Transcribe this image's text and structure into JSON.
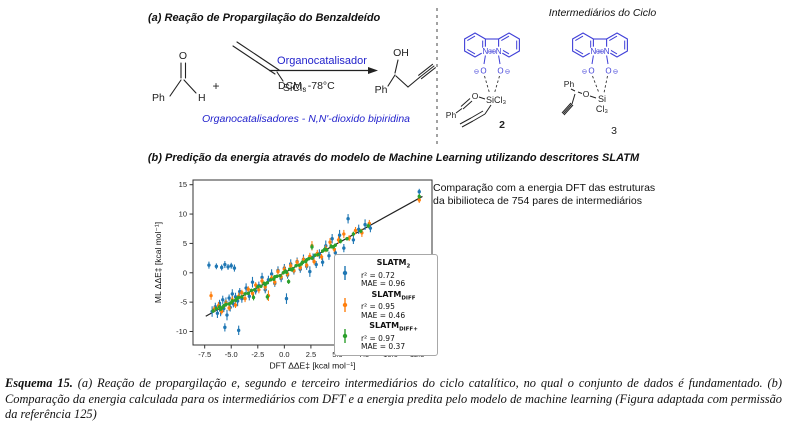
{
  "colors": {
    "chem_blue": "#2222cc",
    "struct_blue": "#4040d8",
    "identity_line": "#222222"
  },
  "panel_a": {
    "title": "(a) Reação de Propargilação do Benzaldeído",
    "benzaldehyde": {
      "ph": "Ph",
      "o": "O",
      "h": "H"
    },
    "plus": "+",
    "allene": {
      "sicl3": "SiCl₃"
    },
    "arrow": {
      "catalyst": "Organocatalisador",
      "conditions": "DCM, -78°C"
    },
    "product": {
      "oh": "OH",
      "ph": "Ph"
    },
    "note": "Organocatalisadores - N,N'-dioxido bipiridina"
  },
  "intermediates": {
    "title": "Intermediários do Ciclo",
    "n": "N",
    "oplus": "⊕",
    "ominus": "⊖",
    "o": "O",
    "struct2": {
      "o": "O",
      "sicl3": "SiCl₃",
      "ph": "Ph",
      "label": "2"
    },
    "struct3": {
      "ph": "Ph",
      "o": "O",
      "si": "Si",
      "cl3": "Cl₃",
      "label": "3"
    }
  },
  "panel_b": {
    "title": "(b) Predição da energia através do modelo de Machine Learning utilizando descritores SLATM",
    "note": "Comparação com a energia DFT das estruturas\nda bibilioteca de 754 pares de intermediários"
  },
  "caption": {
    "prefix": "Esquema 15.",
    "body": " (a) Reação de propargilação e, segundo e terceiro intermediários do ciclo catalítico, no qual o conjunto de dados é fundamentado. (b) Comparação da energia calculada para os intermediários com DFT e a energia predita pelo modelo de machine learning (Figura adaptada com permissão da referência 125)"
  },
  "chart_data": {
    "type": "scatter",
    "xlabel": "DFT ΔΔE‡ [kcal mol⁻¹]",
    "ylabel": "ML ΔΔE‡ [kcal mol⁻¹]",
    "xlim": [
      -8.6,
      13.9
    ],
    "ylim": [
      -12.3,
      15.8
    ],
    "x_ticks": [
      -7.5,
      -5,
      -2.5,
      0,
      2.5,
      5,
      7.5,
      10,
      12.5
    ],
    "x_tick_labels": [
      "-7.5",
      "-5.0",
      "-2.5",
      "0.0",
      "2.5",
      "5.0",
      "7.5",
      "10.0",
      "12.5"
    ],
    "y_ticks": [
      -10,
      -5,
      0,
      5,
      10,
      15
    ],
    "y_tick_labels": [
      "-10",
      "-5",
      "0",
      "5",
      "10",
      "15"
    ],
    "grid": false,
    "legend_position": "lower right",
    "identity_line": {
      "x1": -7.4,
      "y1": -7.4,
      "x2": 13.0,
      "y2": 13.0
    },
    "series": [
      {
        "name_main": "SLATM",
        "name_sub": "2",
        "color": "#1f77b4",
        "r2_label": "r² = 0.72",
        "mae_label": "MAE = 0.96",
        "points": [
          [
            -6.8,
            -6.6,
            0.9
          ],
          [
            -6.5,
            -5.8,
            0.7
          ],
          [
            -6.3,
            -6.9,
            0.8
          ],
          [
            -6.1,
            -5.2,
            0.6
          ],
          [
            -6.0,
            -6.4,
            1.0
          ],
          [
            -5.8,
            -4.6,
            0.7
          ],
          [
            -5.7,
            -6.1,
            0.6
          ],
          [
            -5.5,
            -5.0,
            0.8
          ],
          [
            -5.4,
            -7.2,
            0.9
          ],
          [
            -5.2,
            -4.3,
            0.6
          ],
          [
            -5.1,
            -5.9,
            0.7
          ],
          [
            -4.9,
            -3.6,
            0.8
          ],
          [
            -4.8,
            -5.3,
            0.6
          ],
          [
            -4.6,
            -4.1,
            0.7
          ],
          [
            -4.4,
            -4.8,
            0.9
          ],
          [
            -4.2,
            -3.2,
            0.6
          ],
          [
            -4.0,
            -4.4,
            0.7
          ],
          [
            -7.1,
            1.3,
            0.6
          ],
          [
            -6.4,
            1.1,
            0.5
          ],
          [
            -5.9,
            0.9,
            0.5
          ],
          [
            -5.6,
            1.4,
            0.6
          ],
          [
            -5.3,
            1.0,
            0.5
          ],
          [
            -5.0,
            1.2,
            0.5
          ],
          [
            -4.7,
            0.8,
            0.6
          ],
          [
            -5.6,
            -9.3,
            0.7
          ],
          [
            -4.3,
            -9.8,
            0.8
          ],
          [
            -3.6,
            -2.6,
            0.8
          ],
          [
            -3.3,
            -4.0,
            0.7
          ],
          [
            -3.0,
            -1.6,
            0.9
          ],
          [
            -2.7,
            -3.1,
            0.6
          ],
          [
            -2.4,
            -2.2,
            0.7
          ],
          [
            -2.1,
            -0.8,
            0.8
          ],
          [
            -1.8,
            -2.9,
            0.6
          ],
          [
            -1.5,
            -1.2,
            0.7
          ],
          [
            -1.2,
            -0.2,
            0.8
          ],
          [
            -0.9,
            -1.8,
            0.6
          ],
          [
            -0.6,
            0.4,
            0.7
          ],
          [
            -0.3,
            -1.0,
            0.6
          ],
          [
            0.0,
            0.8,
            0.7
          ],
          [
            0.2,
            -4.4,
            0.9
          ],
          [
            0.3,
            -0.4,
            0.6
          ],
          [
            0.6,
            1.5,
            0.8
          ],
          [
            0.9,
            0.3,
            0.6
          ],
          [
            1.2,
            1.9,
            0.7
          ],
          [
            1.5,
            0.6,
            0.6
          ],
          [
            1.8,
            2.3,
            0.8
          ],
          [
            2.1,
            1.1,
            0.6
          ],
          [
            2.4,
            0.2,
            0.9
          ],
          [
            2.7,
            2.6,
            0.7
          ],
          [
            3.0,
            1.4,
            0.6
          ],
          [
            3.3,
            3.2,
            0.8
          ],
          [
            3.6,
            1.8,
            0.7
          ],
          [
            3.9,
            4.6,
            0.9
          ],
          [
            4.2,
            2.9,
            0.7
          ],
          [
            4.5,
            5.8,
            0.8
          ],
          [
            4.8,
            3.4,
            0.6
          ],
          [
            5.2,
            6.4,
            0.9
          ],
          [
            5.6,
            4.2,
            0.7
          ],
          [
            6.0,
            9.2,
            0.8
          ],
          [
            6.5,
            5.6,
            0.7
          ],
          [
            7.0,
            7.4,
            0.8
          ],
          [
            7.6,
            8.2,
            0.9
          ],
          [
            8.1,
            7.6,
            0.7
          ],
          [
            12.7,
            13.8,
            0.5
          ]
        ]
      },
      {
        "name_main": "SLATM",
        "name_sub": "DIFF",
        "color": "#ff7f0e",
        "r2_label": "r² = 0.95",
        "mae_label": "MAE = 0.46",
        "points": [
          [
            -6.9,
            -3.9,
            0.7
          ],
          [
            -6.6,
            -6.2,
            0.5
          ],
          [
            -6.2,
            -5.6,
            0.6
          ],
          [
            -5.9,
            -6.6,
            0.5
          ],
          [
            -5.5,
            -5.2,
            0.6
          ],
          [
            -5.2,
            -6.0,
            0.5
          ],
          [
            -4.9,
            -4.6,
            0.6
          ],
          [
            -4.6,
            -5.5,
            0.5
          ],
          [
            -4.3,
            -4.0,
            0.6
          ],
          [
            -4.0,
            -3.4,
            0.5
          ],
          [
            -3.7,
            -4.4,
            0.6
          ],
          [
            -3.4,
            -2.8,
            0.5
          ],
          [
            -3.0,
            -3.5,
            0.6
          ],
          [
            -2.7,
            -2.1,
            0.5
          ],
          [
            -2.4,
            -2.9,
            0.6
          ],
          [
            -2.1,
            -1.4,
            0.5
          ],
          [
            -1.8,
            -2.4,
            0.6
          ],
          [
            -1.5,
            -3.9,
            0.9
          ],
          [
            -1.2,
            -0.9,
            0.5
          ],
          [
            -0.9,
            -1.6,
            0.6
          ],
          [
            -0.6,
            0.2,
            0.5
          ],
          [
            -0.3,
            -0.7,
            0.5
          ],
          [
            0.0,
            0.6,
            0.6
          ],
          [
            0.3,
            -0.2,
            0.5
          ],
          [
            0.6,
            1.2,
            0.6
          ],
          [
            0.9,
            0.4,
            0.5
          ],
          [
            1.2,
            1.8,
            0.6
          ],
          [
            1.5,
            0.9,
            0.5
          ],
          [
            1.8,
            2.2,
            0.6
          ],
          [
            2.1,
            1.3,
            0.5
          ],
          [
            2.4,
            2.8,
            0.6
          ],
          [
            2.6,
            4.6,
            0.8
          ],
          [
            2.8,
            1.9,
            0.5
          ],
          [
            3.1,
            3.3,
            0.6
          ],
          [
            3.5,
            2.7,
            0.5
          ],
          [
            3.9,
            4.1,
            0.6
          ],
          [
            4.3,
            5.2,
            0.7
          ],
          [
            4.7,
            4.0,
            0.5
          ],
          [
            5.1,
            5.6,
            0.6
          ],
          [
            5.6,
            6.6,
            0.7
          ],
          [
            6.1,
            5.9,
            0.5
          ],
          [
            6.7,
            7.2,
            0.6
          ],
          [
            7.3,
            6.8,
            0.7
          ],
          [
            8.0,
            8.4,
            0.6
          ],
          [
            12.7,
            12.4,
            0.5
          ]
        ]
      },
      {
        "name_main": "SLATM",
        "name_sub": "DIFF+",
        "color": "#2ca02c",
        "r2_label": "r² = 0.97",
        "mae_label": "MAE = 0.37",
        "points": [
          [
            -6.7,
            -6.5,
            0.3
          ],
          [
            -6.4,
            -6.1,
            0.3
          ],
          [
            -6.1,
            -5.8,
            0.3
          ],
          [
            -5.8,
            -5.9,
            0.3
          ],
          [
            -5.5,
            -5.4,
            0.3
          ],
          [
            -5.2,
            -5.3,
            0.3
          ],
          [
            -4.9,
            -4.8,
            0.3
          ],
          [
            -4.6,
            -4.7,
            0.3
          ],
          [
            -4.3,
            -4.2,
            0.3
          ],
          [
            -4.0,
            -4.1,
            0.3
          ],
          [
            -3.7,
            -3.6,
            0.3
          ],
          [
            -3.4,
            -3.5,
            0.3
          ],
          [
            -3.1,
            -3.0,
            0.3
          ],
          [
            -2.8,
            -2.9,
            0.3
          ],
          [
            -2.5,
            -2.4,
            0.3
          ],
          [
            -2.2,
            -2.3,
            0.3
          ],
          [
            -1.9,
            -1.8,
            0.3
          ],
          [
            -1.6,
            -1.7,
            0.3
          ],
          [
            -1.3,
            -1.2,
            0.3
          ],
          [
            -1.0,
            -1.1,
            0.3
          ],
          [
            -0.7,
            -0.6,
            0.3
          ],
          [
            -0.4,
            -0.5,
            0.3
          ],
          [
            -0.1,
            0.0,
            0.3
          ],
          [
            0.2,
            0.1,
            0.3
          ],
          [
            0.5,
            0.6,
            0.3
          ],
          [
            0.8,
            0.7,
            0.3
          ],
          [
            1.1,
            1.2,
            0.3
          ],
          [
            1.4,
            1.3,
            0.3
          ],
          [
            1.7,
            1.8,
            0.3
          ],
          [
            2.0,
            1.9,
            0.3
          ],
          [
            2.3,
            2.4,
            0.3
          ],
          [
            2.6,
            2.5,
            0.3
          ],
          [
            2.9,
            3.0,
            0.3
          ],
          [
            3.2,
            3.1,
            0.3
          ],
          [
            3.6,
            3.7,
            0.3
          ],
          [
            4.0,
            3.9,
            0.3
          ],
          [
            4.4,
            4.5,
            0.4
          ],
          [
            4.8,
            4.7,
            0.3
          ],
          [
            5.3,
            5.4,
            0.4
          ],
          [
            5.9,
            5.8,
            0.3
          ],
          [
            6.5,
            6.6,
            0.4
          ],
          [
            7.2,
            7.1,
            0.3
          ],
          [
            7.9,
            8.0,
            0.4
          ],
          [
            12.7,
            13.0,
            0.4
          ],
          [
            -5.7,
            -5.6,
            0.3
          ],
          [
            -5.0,
            -5.1,
            0.3
          ],
          [
            -4.5,
            -4.4,
            0.3
          ],
          [
            -6.0,
            -6.2,
            0.3
          ],
          [
            0.1,
            0.3,
            0.3
          ],
          [
            0.7,
            0.5,
            0.3
          ],
          [
            1.6,
            1.5,
            0.3
          ],
          [
            2.1,
            2.2,
            0.3
          ],
          [
            -0.9,
            -0.7,
            0.3
          ],
          [
            -1.8,
            -2.0,
            0.3
          ],
          [
            3.8,
            4.0,
            0.4
          ],
          [
            4.6,
            4.4,
            0.3
          ],
          [
            -2.9,
            -4.2,
            0.5
          ],
          [
            0.4,
            -1.5,
            0.4
          ],
          [
            -1.6,
            -4.1,
            0.5
          ],
          [
            2.6,
            4.4,
            0.5
          ]
        ]
      }
    ]
  }
}
